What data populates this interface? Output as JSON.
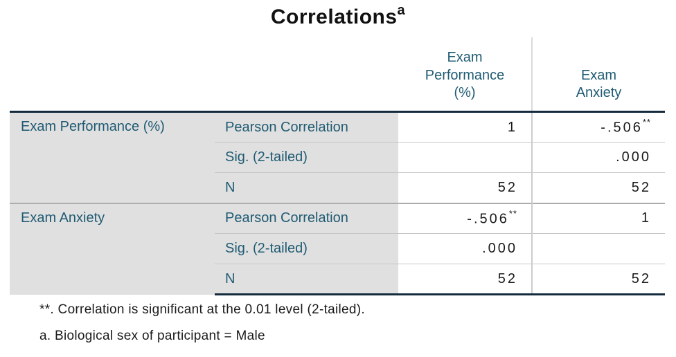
{
  "title": {
    "text": "Correlations",
    "footnote_marker": "a"
  },
  "table": {
    "column_headers": [
      {
        "label": "Exam\nPerformance\n(%)"
      },
      {
        "label": "Exam\nAnxiety"
      }
    ],
    "blocks": [
      {
        "row_label": "Exam Performance (%)",
        "rows": [
          {
            "stat": "Pearson Correlation",
            "exam_performance": "1",
            "exam_performance_sup": "",
            "exam_anxiety": "-.506",
            "exam_anxiety_sup": "**"
          },
          {
            "stat": "Sig. (2-tailed)",
            "exam_performance": "",
            "exam_performance_sup": "",
            "exam_anxiety": ".000",
            "exam_anxiety_sup": ""
          },
          {
            "stat": "N",
            "exam_performance": "52",
            "exam_performance_sup": "",
            "exam_anxiety": "52",
            "exam_anxiety_sup": ""
          }
        ]
      },
      {
        "row_label": "Exam Anxiety",
        "rows": [
          {
            "stat": "Pearson Correlation",
            "exam_performance": "-.506",
            "exam_performance_sup": "**",
            "exam_anxiety": "1",
            "exam_anxiety_sup": ""
          },
          {
            "stat": "Sig. (2-tailed)",
            "exam_performance": ".000",
            "exam_performance_sup": "",
            "exam_anxiety": "",
            "exam_anxiety_sup": ""
          },
          {
            "stat": "N",
            "exam_performance": "52",
            "exam_performance_sup": "",
            "exam_anxiety": "52",
            "exam_anxiety_sup": ""
          }
        ]
      }
    ]
  },
  "footnotes": [
    "**. Correlation is significant at the 0.01 level (2-tailed).",
    "a. Biological sex of participant = Male"
  ],
  "colors": {
    "label_teal": "#1f5b73",
    "strong_border": "#132b3d",
    "stub_background": "#e0e0e0",
    "light_gridline": "#c6c6c6",
    "block_divider": "#adadad",
    "value_text": "#1a1a1a"
  }
}
